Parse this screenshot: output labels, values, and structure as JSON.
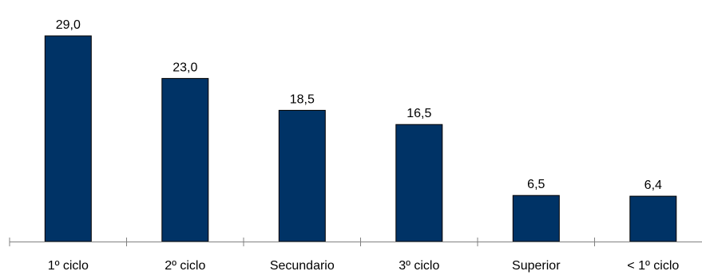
{
  "chart_data": {
    "type": "bar",
    "categories": [
      "1º ciclo",
      "2º ciclo",
      "Secundario",
      "3º ciclo",
      "Superior",
      "< 1º ciclo"
    ],
    "values": [
      29.0,
      23.0,
      18.5,
      16.5,
      6.5,
      6.4
    ],
    "data_labels": [
      "29,0",
      "23,0",
      "18,5",
      "16,5",
      "6,5",
      "6,4"
    ],
    "title": "",
    "xlabel": "",
    "ylabel": "",
    "ylim": [
      0,
      29.0
    ],
    "grid": false,
    "legend": "none",
    "bar_color": "#003366",
    "bar_stroke": "#000000",
    "axis_color": "#808080",
    "text_color": "#000000"
  }
}
